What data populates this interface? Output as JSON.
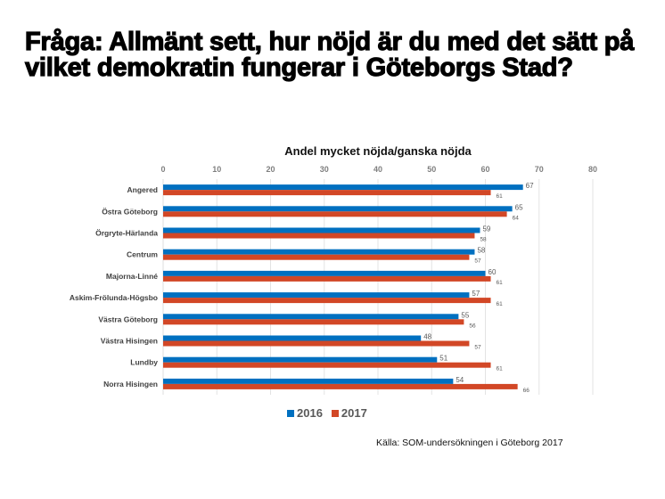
{
  "slide": {
    "title": "Fråga: Allmänt sett, hur nöjd är du med det sätt på vilket demokratin fungerar i Göteborgs Stad?",
    "source": "Källa: SOM-undersökningen i Göteborg 2017"
  },
  "colors": {
    "series_2016": "#0070C0",
    "series_2017": "#D24726",
    "grid": "#e3e3e3"
  },
  "chart_data": {
    "type": "bar",
    "orientation": "horizontal",
    "title": "Andel mycket nöjda/ganska nöjda",
    "xlabel": "",
    "ylabel": "",
    "xlim": [
      0,
      80
    ],
    "x_ticks": [
      "0",
      "10",
      "20",
      "30",
      "40",
      "50",
      "60",
      "70",
      "80"
    ],
    "x_axis_position": "top",
    "grid": true,
    "legend_position": "bottom",
    "categories": [
      "Angered",
      "Östra Göteborg",
      "Örgryte-Härlanda",
      "Centrum",
      "Majorna-Linné",
      "Askim-Frölunda-Högsbo",
      "Västra Göteborg",
      "Västra Hisingen",
      "Lundby",
      "Norra Hisingen"
    ],
    "series": [
      {
        "name": "2016",
        "values": [
          67,
          65,
          59,
          58,
          60,
          57,
          55,
          48,
          51,
          54
        ]
      },
      {
        "name": "2017",
        "values": [
          61,
          64,
          58,
          57,
          61,
          61,
          56,
          57,
          61,
          66
        ]
      }
    ]
  }
}
